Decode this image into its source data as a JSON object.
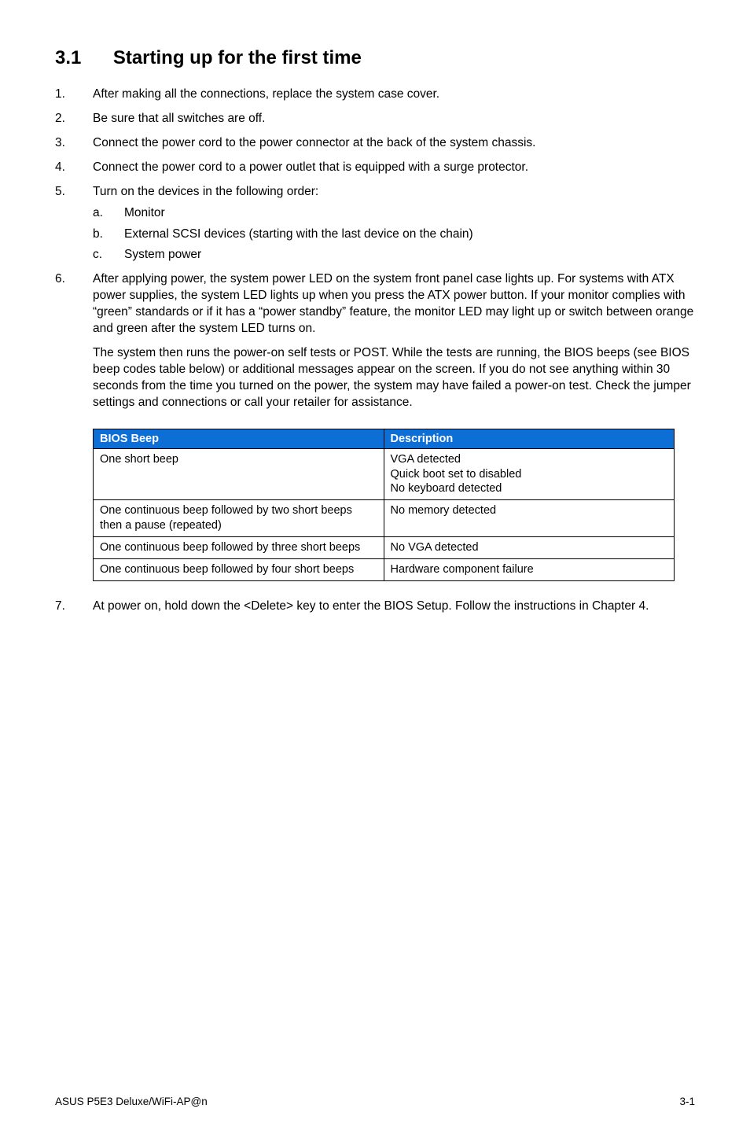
{
  "colors": {
    "table_header_bg": "#0d6fd6",
    "text": "#000000",
    "bg": "#ffffff"
  },
  "heading": {
    "number": "3.1",
    "title": "Starting up for the first time"
  },
  "steps": {
    "s1": "After making all the connections, replace the system case cover.",
    "s2": "Be sure that all switches are off.",
    "s3": "Connect the power cord to the power connector at the back of the system chassis.",
    "s4": "Connect the power cord to a power outlet that is equipped with a surge protector.",
    "s5": "Turn on the devices in the following order:",
    "s5a": "Monitor",
    "s5b": "External SCSI devices (starting with the last device on the chain)",
    "s5c": "System power",
    "s6p1": "After applying power, the system power LED on the system front panel case lights up. For systems with ATX power supplies, the system LED lights up when you press the ATX power button. If your monitor complies with “green” standards or if it has a “power standby” feature, the monitor LED may light up or switch between orange and green after the system LED turns on.",
    "s6p2": "The system then runs the power-on self tests or POST. While the tests are running, the BIOS beeps (see BIOS beep codes table below) or additional messages appear on the screen. If you do not see anything within 30 seconds from the time you turned on the power, the system may have failed a power-on test. Check the jumper settings and connections or call your retailer for assistance.",
    "s7": "At power on, hold down the <Delete> key to enter the BIOS Setup. Follow the instructions in Chapter 4."
  },
  "table": {
    "col_widths": {
      "col1_pct": 50,
      "col2_pct": 50
    },
    "header": {
      "c1": "BIOS Beep",
      "c2": "Description"
    },
    "rows": [
      {
        "c1": "One short beep",
        "c2": "VGA detected\nQuick boot set to disabled\nNo keyboard detected"
      },
      {
        "c1": "One continuous beep followed by two short beeps then a pause (repeated)",
        "c2": "No memory detected"
      },
      {
        "c1": "One continuous beep followed by three short beeps",
        "c2": "No VGA detected"
      },
      {
        "c1": "One continuous beep followed by four short beeps",
        "c2": "Hardware component failure"
      }
    ]
  },
  "footer": {
    "left": "ASUS P5E3 Deluxe/WiFi-AP@n",
    "right": "3-1"
  }
}
